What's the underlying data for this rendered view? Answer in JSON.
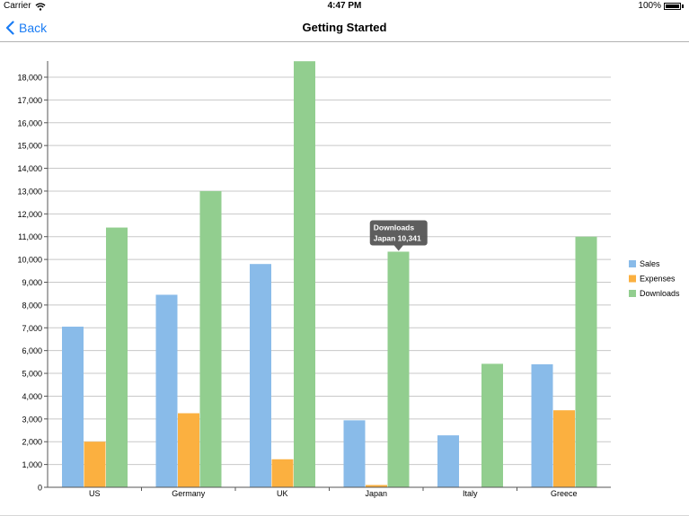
{
  "status_bar": {
    "carrier": "Carrier",
    "time": "4:47 PM",
    "battery": "100%"
  },
  "nav": {
    "back_label": "Back",
    "title": "Getting Started"
  },
  "colors": {
    "sales": "#89bbe9",
    "expenses": "#fbb040",
    "downloads": "#92ce8f",
    "accent": "#1a7cf4"
  },
  "chart_data": {
    "type": "bar",
    "categories": [
      "US",
      "Germany",
      "UK",
      "Japan",
      "Italy",
      "Greece"
    ],
    "series": [
      {
        "name": "Sales",
        "color": "#89bbe9",
        "values": [
          7050,
          8450,
          9800,
          2940,
          2280,
          5400
        ]
      },
      {
        "name": "Expenses",
        "color": "#fbb040",
        "values": [
          2000,
          3250,
          1230,
          100,
          0,
          3380
        ]
      },
      {
        "name": "Downloads",
        "color": "#92ce8f",
        "values": [
          11400,
          13000,
          18700,
          10341,
          5420,
          11000
        ]
      }
    ],
    "ylim": [
      0,
      18000
    ],
    "yticks": [
      0,
      1000,
      2000,
      3000,
      4000,
      5000,
      6000,
      7000,
      8000,
      9000,
      10000,
      11000,
      12000,
      13000,
      14000,
      15000,
      16000,
      17000,
      18000
    ],
    "ytick_labels": [
      "0",
      "1,000",
      "2,000",
      "3,000",
      "4,000",
      "5,000",
      "6,000",
      "7,000",
      "8,000",
      "9,000",
      "10,000",
      "11,000",
      "12,000",
      "13,000",
      "14,000",
      "15,000",
      "16,000",
      "17,000",
      "18,000"
    ],
    "grid": true,
    "legend": "right",
    "tooltip": {
      "series_index": 2,
      "category_index": 3,
      "line1": "Downloads",
      "line2": "Japan 10,341"
    }
  }
}
